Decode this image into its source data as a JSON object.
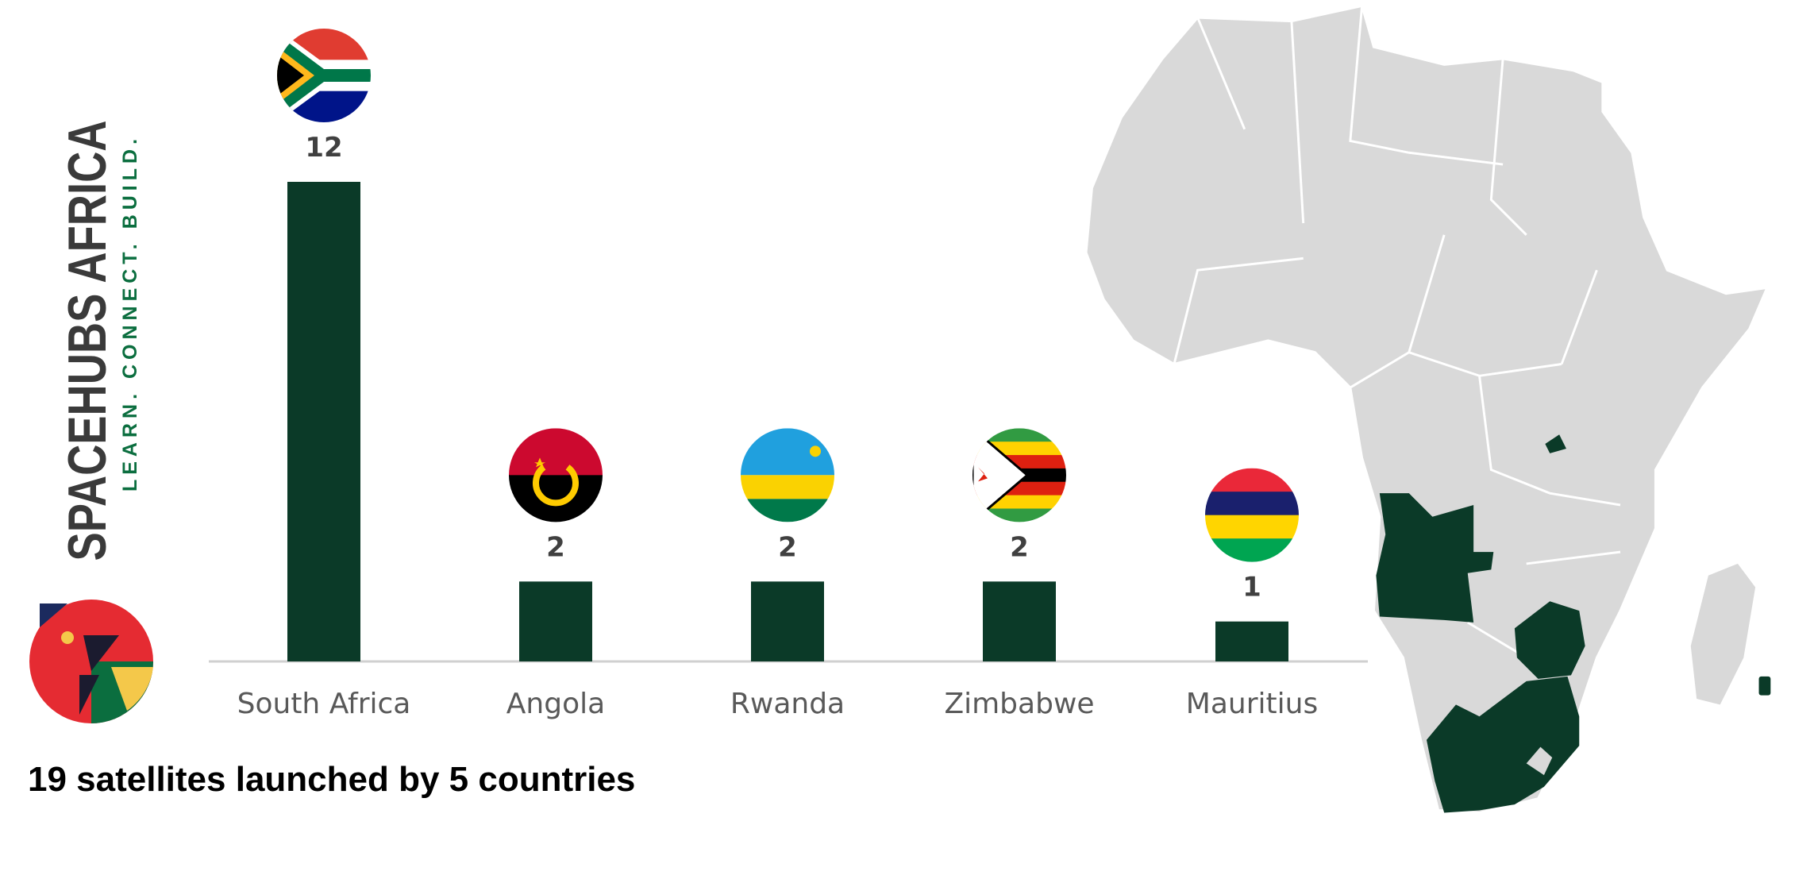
{
  "chart_data": {
    "type": "bar",
    "brand": "SPACEHUBS AFRICA",
    "tagline": "LEARN. CONNECT. BUILD.",
    "title": "19 satellites launched by 5 countries",
    "categories": [
      "South Africa",
      "Angola",
      "Rwanda",
      "Zimbabwe",
      "Mauritius"
    ],
    "values": [
      12,
      2,
      2,
      2,
      1
    ],
    "color": "#0b3a28"
  }
}
